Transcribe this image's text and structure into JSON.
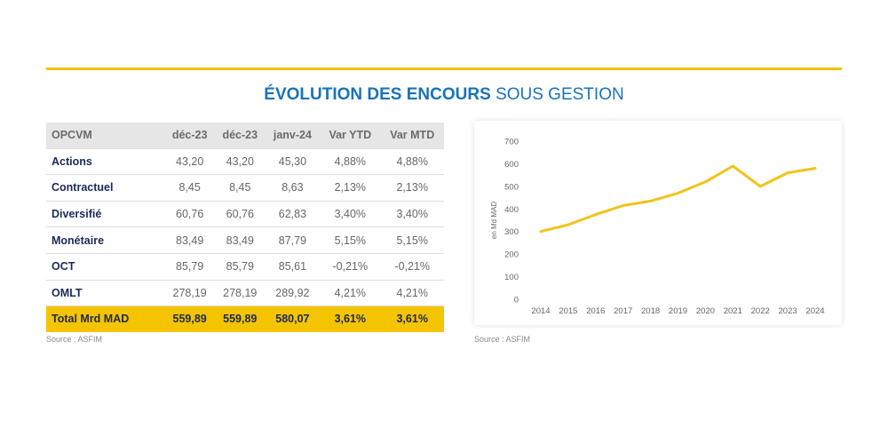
{
  "title": {
    "bold": "ÉVOLUTION DES ENCOURS",
    "light": "SOUS GESTION"
  },
  "table": {
    "headers": [
      "OPCVM",
      "déc-23",
      "déc-23",
      "janv-24",
      "Var YTD",
      "Var MTD"
    ],
    "rows": [
      {
        "name": "Actions",
        "values": [
          "43,20",
          "43,20",
          "45,30",
          "4,88%",
          "4,88%"
        ]
      },
      {
        "name": "Contractuel",
        "values": [
          "8,45",
          "8,45",
          "8,63",
          "2,13%",
          "2,13%"
        ]
      },
      {
        "name": "Diversifié",
        "values": [
          "60,76",
          "60,76",
          "62,83",
          "3,40%",
          "3,40%"
        ]
      },
      {
        "name": "Monétaire",
        "values": [
          "83,49",
          "83,49",
          "87,79",
          "5,15%",
          "5,15%"
        ]
      },
      {
        "name": "OCT",
        "values": [
          "85,79",
          "85,79",
          "85,61",
          "-0,21%",
          "-0,21%"
        ]
      },
      {
        "name": "OMLT",
        "values": [
          "278,19",
          "278,19",
          "289,92",
          "4,21%",
          "4,21%"
        ]
      }
    ],
    "total": {
      "name": "Total Mrd MAD",
      "values": [
        "559,89",
        "559,89",
        "580,07",
        "3,61%",
        "3,61%"
      ]
    }
  },
  "source_left": "Source : ASFIM",
  "source_right": "Source : ASFIM",
  "colors": {
    "accent": "#f2c200",
    "title": "#1a73b8",
    "line": "#f0c419",
    "row_name": "#1c2a57"
  },
  "chart_data": {
    "type": "line",
    "x": [
      "2014",
      "2015",
      "2016",
      "2017",
      "2018",
      "2019",
      "2020",
      "2021",
      "2022",
      "2023",
      "2024"
    ],
    "series": [
      {
        "values": [
          300,
          330,
          375,
          415,
          435,
          470,
          520,
          590,
          500,
          560,
          580
        ]
      }
    ],
    "ylabel": "en Md MAD",
    "yticks": [
      0,
      100,
      200,
      300,
      400,
      500,
      600,
      700
    ],
    "ylim": [
      0,
      700
    ],
    "grid": false
  }
}
